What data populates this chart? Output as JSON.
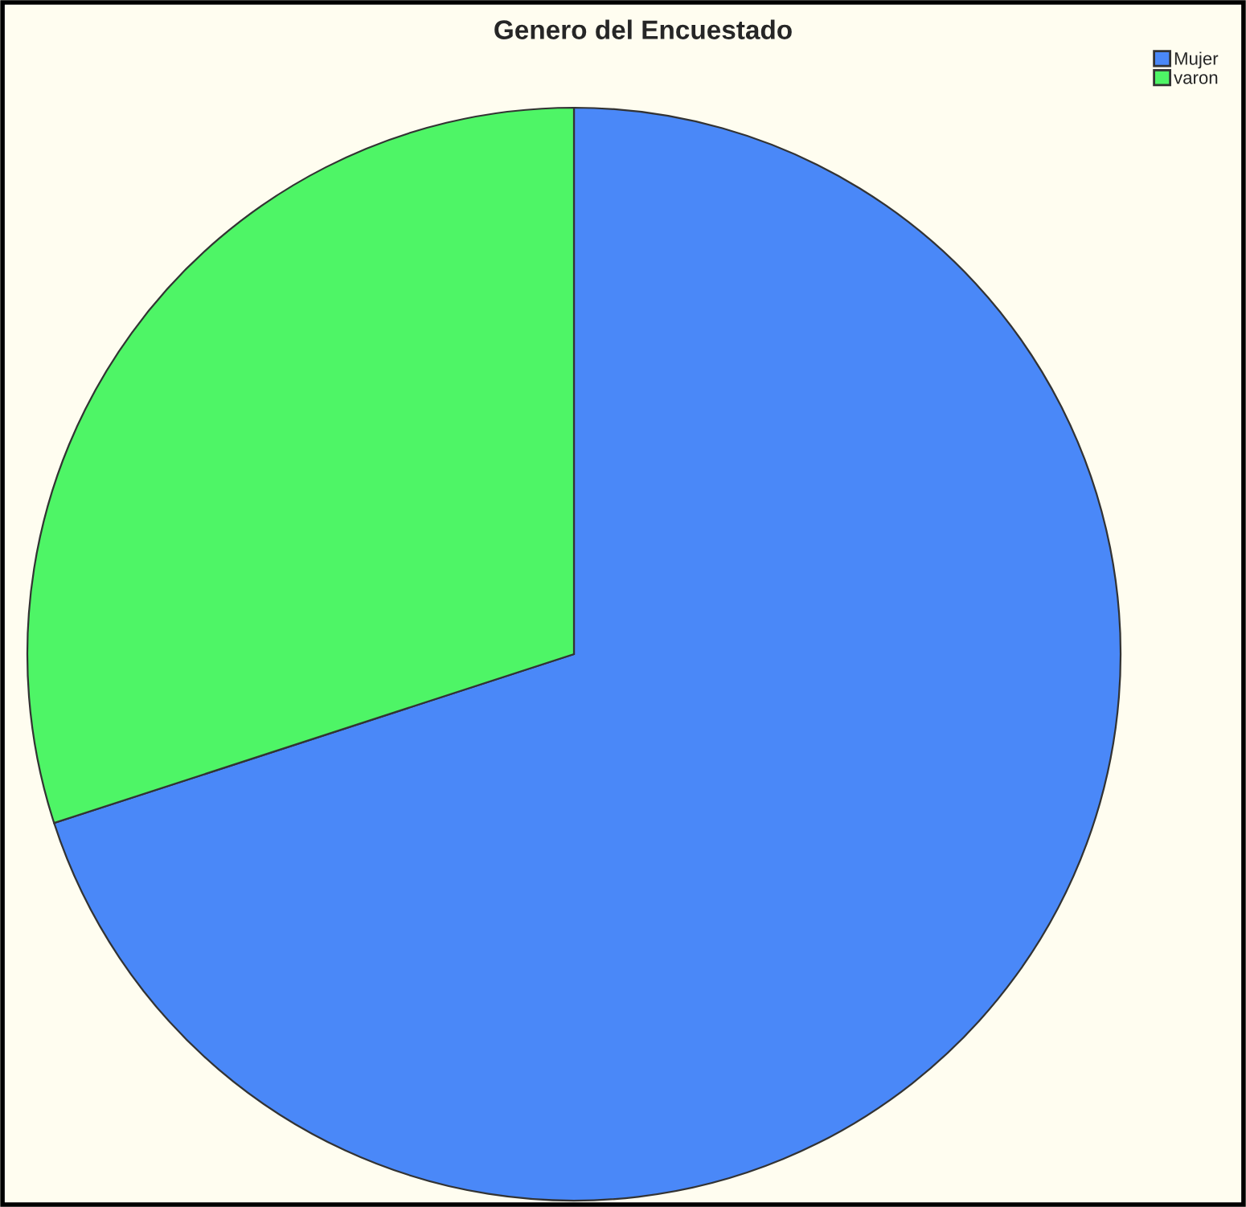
{
  "chart_data": {
    "type": "pie",
    "title": "Genero del Encuestado",
    "categories": [
      "Mujer",
      "varon"
    ],
    "values": [
      70,
      30
    ],
    "colors": [
      "#4a88f8",
      "#4ef566"
    ],
    "legend": "top right"
  }
}
